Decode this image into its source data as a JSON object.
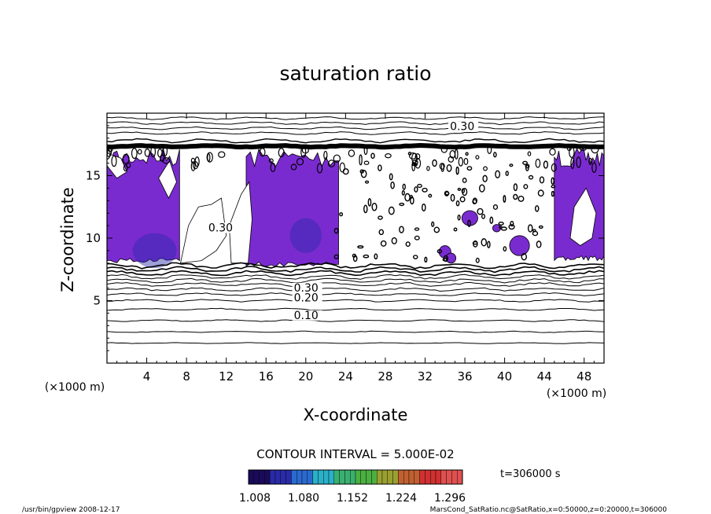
{
  "chart_data": {
    "type": "contour",
    "title": "saturation ratio",
    "xlabel": "X-coordinate",
    "ylabel": "Z-coordinate",
    "x_unit": "(×1000 m)",
    "y_unit": "(×1000 m)",
    "xlim": [
      0,
      50
    ],
    "ylim": [
      0,
      20
    ],
    "x_ticks": [
      4,
      8,
      12,
      16,
      20,
      24,
      28,
      32,
      36,
      40,
      44,
      48
    ],
    "y_ticks": [
      5,
      10,
      15
    ],
    "contour_interval_text": "CONTOUR INTERVAL = 5.000E-02",
    "time_text": "t=306000 s",
    "colorbar": {
      "tick_labels": [
        "1.008",
        "1.080",
        "1.152",
        "1.224",
        "1.296"
      ],
      "colors": [
        "#1a0a5a",
        "#2a2aa8",
        "#2a6ad0",
        "#2ab0c8",
        "#3ab070",
        "#4ab040",
        "#9aa030",
        "#c06030",
        "#d03030",
        "#e05050"
      ]
    },
    "contour_labels": [
      {
        "text": "0.10",
        "x": 18.8,
        "y": 3.6
      },
      {
        "text": "0.20",
        "x": 18.8,
        "y": 5.0
      },
      {
        "text": "0.30",
        "x": 18.8,
        "y": 5.8
      },
      {
        "text": "0.30",
        "x": 34.5,
        "y": 18.7
      },
      {
        "text": "0.30",
        "x": 10.2,
        "y": 10.6
      }
    ],
    "supersaturated_fill_color": "#7a2bd0",
    "supersaturated_core_color": "#2a2aa8",
    "footer_left": "/usr/bin/gpview   2008-12-17",
    "footer_right": "MarsCond_SatRatio.nc@SatRatio,x=0:50000,z=0:20000,t=306000"
  }
}
